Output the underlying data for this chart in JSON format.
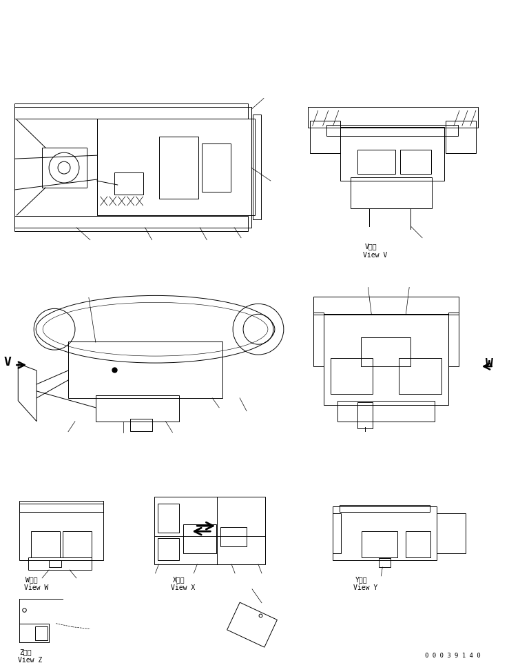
{
  "bg_color": "#ffffff",
  "line_color": "#000000",
  "fig_width": 7.39,
  "fig_height": 9.62,
  "dpi": 100,
  "part_number": "00039140",
  "view_v_label_jp": "V　視",
  "view_v_label_en": "View V",
  "view_w_label_jp": "W　視",
  "view_w_label_en": "View W",
  "view_x_label_jp": "X　視",
  "view_x_label_en": "View X",
  "view_y_label_jp": "Y　視",
  "view_y_label_en": "View Y",
  "view_z_label_jp": "Z　視",
  "view_z_label_en": "View Z"
}
